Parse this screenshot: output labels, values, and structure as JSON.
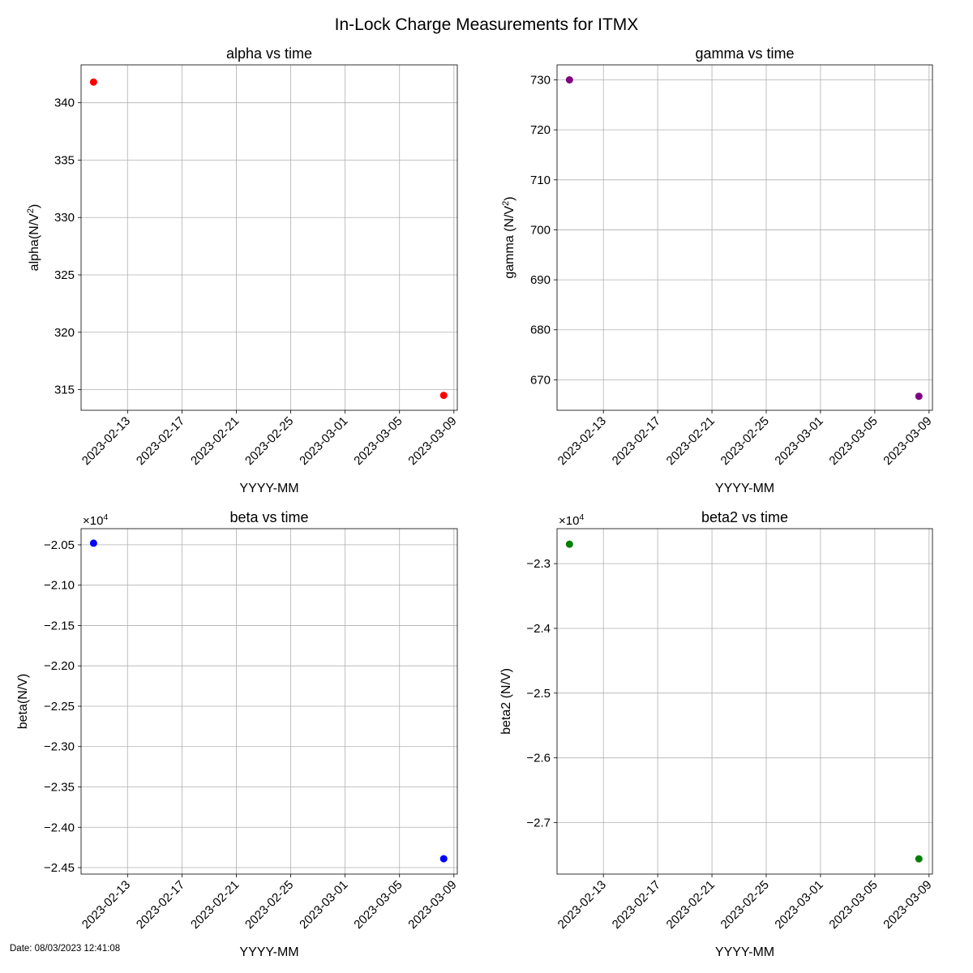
{
  "figure": {
    "suptitle": "In-Lock Charge Measurements for ITMX",
    "footer": "Date: 08/03/2023 12:41:08"
  },
  "chart_data": [
    {
      "type": "scatter",
      "title": "alpha vs time",
      "xlabel": "YYYY-MM",
      "ylabel_main": "alpha(N/V",
      "ylabel_sup": "2",
      "ylabel_tail": ")",
      "x_ticks": [
        "2023-02-13",
        "2023-02-17",
        "2023-02-21",
        "2023-02-25",
        "2023-03-01",
        "2023-03-05",
        "2023-03-09"
      ],
      "xlim": [
        "2023-02-09T14:00",
        "2023-03-09T06:00"
      ],
      "y_ticks": [
        315,
        320,
        325,
        330,
        335,
        340
      ],
      "y_tick_labels": [
        "315",
        "320",
        "325",
        "330",
        "335",
        "340"
      ],
      "ylim": [
        313.2,
        343.3
      ],
      "offset_text": "",
      "color": "#ff0000",
      "grid": true,
      "points": [
        {
          "x": "2023-02-10T12:00",
          "y": 341.8
        },
        {
          "x": "2023-03-08T06:00",
          "y": 314.5
        }
      ]
    },
    {
      "type": "scatter",
      "title": "gamma vs time",
      "xlabel": "YYYY-MM",
      "ylabel_main": "gamma (N/V",
      "ylabel_sup": "2",
      "ylabel_tail": ")",
      "x_ticks": [
        "2023-02-13",
        "2023-02-17",
        "2023-02-21",
        "2023-02-25",
        "2023-03-01",
        "2023-03-05",
        "2023-03-09"
      ],
      "xlim": [
        "2023-02-09T14:00",
        "2023-03-09T06:00"
      ],
      "y_ticks": [
        670,
        680,
        690,
        700,
        710,
        720,
        730
      ],
      "y_tick_labels": [
        "670",
        "680",
        "690",
        "700",
        "710",
        "720",
        "730"
      ],
      "ylim": [
        663.9,
        733.0
      ],
      "offset_text": "",
      "color": "#800080",
      "grid": true,
      "points": [
        {
          "x": "2023-02-10T12:00",
          "y": 730.0
        },
        {
          "x": "2023-03-08T06:00",
          "y": 666.7
        }
      ]
    },
    {
      "type": "scatter",
      "title": "beta vs time",
      "xlabel": "YYYY-MM",
      "ylabel_main": "beta(N/V)",
      "ylabel_sup": "",
      "ylabel_tail": "",
      "x_ticks": [
        "2023-02-13",
        "2023-02-17",
        "2023-02-21",
        "2023-02-25",
        "2023-03-01",
        "2023-03-05",
        "2023-03-09"
      ],
      "xlim": [
        "2023-02-09T14:00",
        "2023-03-09T06:00"
      ],
      "y_ticks": [
        -24500,
        -24000,
        -23500,
        -23000,
        -22500,
        -22000,
        -21500,
        -21000,
        -20500
      ],
      "y_tick_labels": [
        "−2.45",
        "−2.40",
        "−2.35",
        "−2.30",
        "−2.25",
        "−2.20",
        "−2.15",
        "−2.10",
        "−2.05"
      ],
      "ylim": [
        -24580,
        -20300
      ],
      "offset_text": "×10",
      "offset_exp": "4",
      "color": "#0000ff",
      "grid": true,
      "points": [
        {
          "x": "2023-02-10T12:00",
          "y": -20480
        },
        {
          "x": "2023-03-08T06:00",
          "y": -24390
        }
      ]
    },
    {
      "type": "scatter",
      "title": "beta2 vs time",
      "xlabel": "YYYY-MM",
      "ylabel_main": "beta2 (N/V)",
      "ylabel_sup": "",
      "ylabel_tail": "",
      "x_ticks": [
        "2023-02-13",
        "2023-02-17",
        "2023-02-21",
        "2023-02-25",
        "2023-03-01",
        "2023-03-05",
        "2023-03-09"
      ],
      "xlim": [
        "2023-02-09T14:00",
        "2023-03-09T06:00"
      ],
      "y_ticks": [
        -27000,
        -26000,
        -25000,
        -24000,
        -23000
      ],
      "y_tick_labels": [
        "−2.7",
        "−2.6",
        "−2.5",
        "−2.4",
        "−2.3"
      ],
      "ylim": [
        -27795,
        -22460
      ],
      "offset_text": "×10",
      "offset_exp": "4",
      "color": "#008000",
      "grid": true,
      "points": [
        {
          "x": "2023-02-10T12:00",
          "y": -22700
        },
        {
          "x": "2023-03-08T06:00",
          "y": -27560
        }
      ]
    }
  ]
}
